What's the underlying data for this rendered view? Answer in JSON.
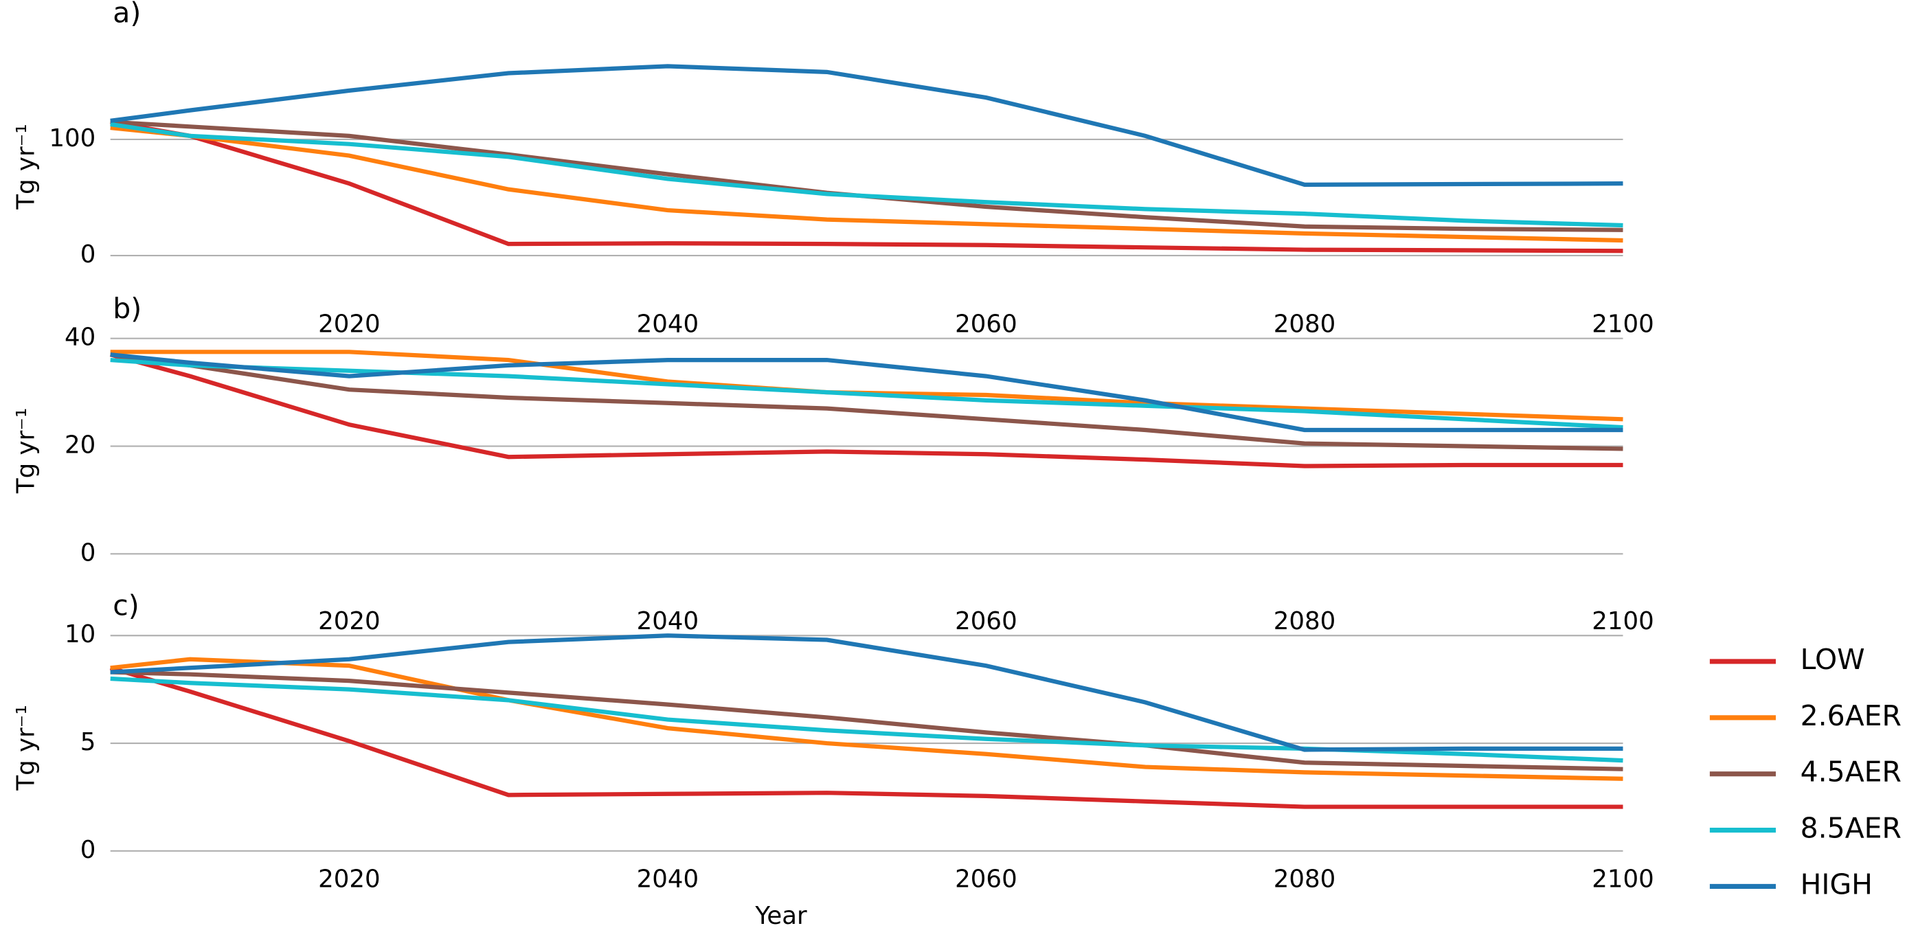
{
  "chart_data": [
    {
      "type": "line",
      "label": "a)",
      "ylabel": "Tg yr⁻¹",
      "x": [
        2005,
        2010,
        2020,
        2030,
        2040,
        2050,
        2060,
        2070,
        2080,
        2090,
        2100
      ],
      "xlim": [
        2005,
        2100
      ],
      "xticks": [
        2020,
        2040,
        2060,
        2080,
        2100
      ],
      "ylim": [
        0,
        170
      ],
      "yticks": [
        0,
        100
      ],
      "grid": true,
      "series": [
        {
          "color": "#d62728",
          "values": [
            115,
            103,
            62,
            10,
            10.5,
            10,
            9,
            7,
            5,
            4.5,
            4
          ]
        },
        {
          "color": "#ff7f0e",
          "values": [
            110,
            103,
            86,
            57,
            39,
            31,
            27,
            23,
            19,
            16,
            13
          ]
        },
        {
          "color": "#8c564b",
          "values": [
            115,
            111,
            103,
            87,
            70,
            54,
            42,
            33,
            25,
            23,
            22
          ]
        },
        {
          "color": "#17becf",
          "values": [
            113,
            103,
            96,
            85,
            66,
            53,
            46,
            40,
            36,
            30,
            26
          ]
        },
        {
          "color": "#1f77b4",
          "values": [
            116,
            125,
            142,
            157,
            163,
            158,
            136,
            103,
            61,
            61.5,
            62
          ]
        }
      ]
    },
    {
      "type": "line",
      "label": "b)",
      "ylabel": "Tg yr⁻¹",
      "x": [
        2005,
        2010,
        2020,
        2030,
        2040,
        2050,
        2060,
        2070,
        2080,
        2090,
        2100
      ],
      "xlim": [
        2005,
        2100
      ],
      "xticks": [
        2020,
        2040,
        2060,
        2080,
        2100
      ],
      "ylim": [
        0,
        42
      ],
      "yticks": [
        0,
        20,
        40
      ],
      "grid": true,
      "series": [
        {
          "color": "#d62728",
          "values": [
            37,
            33,
            24,
            18,
            18.5,
            19,
            18.5,
            17.5,
            16.3,
            16.5,
            16.5
          ]
        },
        {
          "color": "#ff7f0e",
          "values": [
            37.5,
            37.5,
            37.5,
            36,
            32,
            30,
            29.5,
            28,
            27,
            26,
            25
          ]
        },
        {
          "color": "#8c564b",
          "values": [
            37,
            35,
            30.5,
            29,
            28,
            27,
            25,
            23,
            20.5,
            20,
            19.5
          ]
        },
        {
          "color": "#17becf",
          "values": [
            36,
            35,
            34,
            33,
            31.5,
            30,
            28.5,
            27.5,
            26.5,
            25,
            23.5
          ]
        },
        {
          "color": "#1f77b4",
          "values": [
            37,
            35.5,
            33,
            35,
            36,
            36,
            33,
            28.5,
            23,
            23,
            23
          ]
        }
      ]
    },
    {
      "type": "line",
      "label": "c)",
      "ylabel": "Tg yr⁻¹",
      "xlabel": "Year",
      "x": [
        2005,
        2010,
        2020,
        2030,
        2040,
        2050,
        2060,
        2070,
        2080,
        2090,
        2100
      ],
      "xlim": [
        2005,
        2100
      ],
      "xticks": [
        2020,
        2040,
        2060,
        2080,
        2100
      ],
      "ylim": [
        0,
        10.5
      ],
      "yticks": [
        0,
        5,
        10
      ],
      "grid": true,
      "legend": "right",
      "series": [
        {
          "name": "LOW",
          "color": "#d62728",
          "values": [
            8.5,
            7.4,
            5.1,
            2.6,
            2.65,
            2.7,
            2.55,
            2.3,
            2.05,
            2.05,
            2.05
          ]
        },
        {
          "name": "2.6AER",
          "color": "#ff7f0e",
          "values": [
            8.5,
            8.9,
            8.6,
            7,
            5.7,
            5,
            4.5,
            3.9,
            3.65,
            3.5,
            3.35
          ]
        },
        {
          "name": "4.5AER",
          "color": "#8c564b",
          "values": [
            8.3,
            8.2,
            7.9,
            7.35,
            6.8,
            6.2,
            5.5,
            4.9,
            4.1,
            3.95,
            3.8
          ]
        },
        {
          "name": "8.5AER",
          "color": "#17becf",
          "values": [
            8,
            7.8,
            7.5,
            7,
            6.1,
            5.6,
            5.2,
            4.9,
            4.75,
            4.5,
            4.2
          ]
        },
        {
          "name": "HIGH",
          "color": "#1f77b4",
          "values": [
            8.3,
            8.5,
            8.9,
            9.7,
            10,
            9.8,
            8.6,
            6.9,
            4.7,
            4.75,
            4.75
          ]
        }
      ]
    }
  ]
}
